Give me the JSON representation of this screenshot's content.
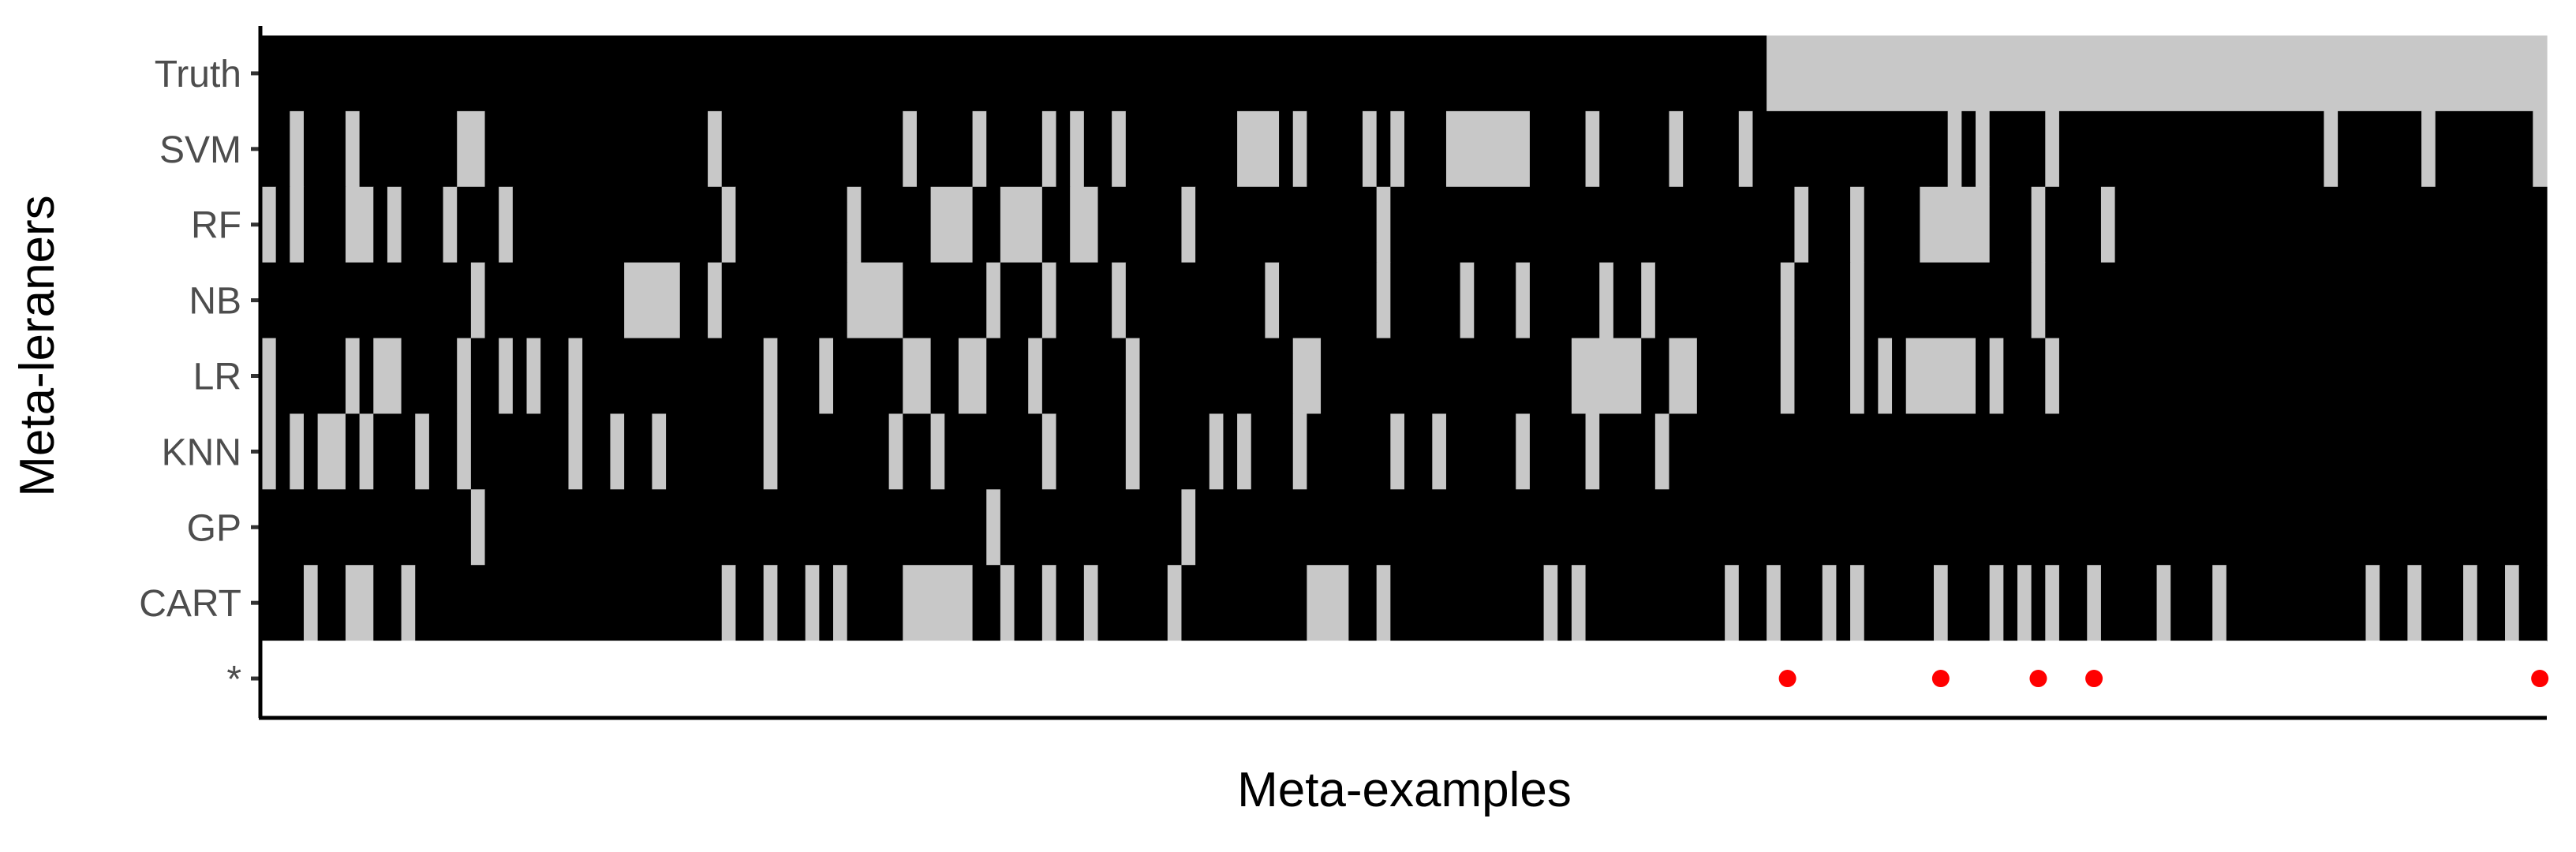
{
  "chart_data": {
    "type": "heatmap",
    "title": "",
    "xlabel": "Meta-examples",
    "ylabel": "Meta-leraners",
    "n_examples": 164,
    "y_categories": [
      "Truth",
      "SVM",
      "RF",
      "NB",
      "LR",
      "KNN",
      "GP",
      "CART",
      "*"
    ],
    "value_legend": {
      "0": "black",
      "1": "light gray"
    },
    "colors": {
      "zero": "#000000",
      "one": "#c8c8c8",
      "marker": "#ff0000",
      "axis": "#000000"
    },
    "rows": [
      {
        "name": "Truth",
        "ones": [
          [
            108,
            163
          ]
        ]
      },
      {
        "name": "SVM",
        "ones": [
          2,
          6,
          [
            14,
            15
          ],
          32,
          46,
          51,
          56,
          58,
          61,
          [
            70,
            71
          ],
          72,
          74,
          [
            85,
            90
          ],
          79,
          81,
          95,
          101,
          106,
          121,
          123,
          128,
          [
            148,
            148
          ],
          [
            155,
            155
          ],
          [
            163,
            163
          ]
        ]
      },
      {
        "name": "RF",
        "ones": [
          0,
          2,
          [
            6,
            7
          ],
          9,
          13,
          17,
          33,
          42,
          [
            48,
            50
          ],
          [
            53,
            55
          ],
          [
            58,
            59
          ],
          66,
          80,
          114,
          110,
          [
            119,
            123
          ],
          127,
          132
        ]
      },
      {
        "name": "NB",
        "ones": [
          15,
          [
            26,
            29
          ],
          32,
          [
            42,
            45
          ],
          52,
          56,
          61,
          72,
          80,
          86,
          90,
          96,
          99,
          109,
          114,
          127
        ]
      },
      {
        "name": "LR",
        "ones": [
          0,
          6,
          [
            8,
            9
          ],
          14,
          17,
          19,
          22,
          36,
          40,
          46,
          47,
          [
            50,
            51
          ],
          55,
          62,
          [
            74,
            75
          ],
          [
            94,
            98
          ],
          [
            101,
            102
          ],
          109,
          114,
          116,
          [
            118,
            122
          ],
          124,
          128
        ]
      },
      {
        "name": "KNN",
        "ones": [
          0,
          2,
          [
            4,
            5
          ],
          [
            7,
            7
          ],
          11,
          14,
          22,
          25,
          28,
          36,
          45,
          48,
          56,
          62,
          68,
          70,
          74,
          81,
          84,
          90,
          95,
          100
        ]
      },
      {
        "name": "GP",
        "ones": [
          15,
          52,
          66
        ]
      },
      {
        "name": "CART",
        "ones": [
          3,
          [
            6,
            7
          ],
          10,
          33,
          36,
          39,
          41,
          [
            46,
            50
          ],
          53,
          56,
          59,
          65,
          [
            75,
            77
          ],
          80,
          92,
          94,
          105,
          108,
          112,
          114,
          120,
          124,
          126,
          128,
          131,
          136,
          140,
          151,
          154,
          158,
          161
        ]
      }
    ],
    "markers": {
      "row": "*",
      "positions": [
        109,
        120,
        127,
        131,
        163
      ]
    }
  }
}
